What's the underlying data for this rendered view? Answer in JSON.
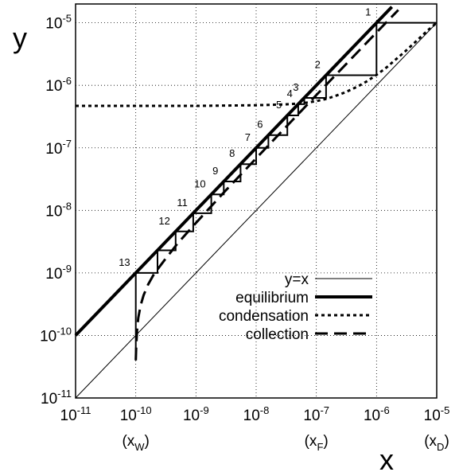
{
  "chart_data": {
    "type": "line",
    "xscale": "log",
    "yscale": "log",
    "xlim": [
      1e-11,
      1e-05
    ],
    "ylim": [
      1e-11,
      2e-05
    ],
    "grid": true,
    "xlabel": "x",
    "ylabel": "y",
    "legend_position": "bottom-right",
    "x_ticks": [
      {
        "exp": "-11"
      },
      {
        "exp": "-10"
      },
      {
        "exp": "-9"
      },
      {
        "exp": "-8"
      },
      {
        "exp": "-7"
      },
      {
        "exp": "-6"
      },
      {
        "exp": "-5"
      }
    ],
    "y_ticks": [
      {
        "exp": "-11"
      },
      {
        "exp": "-10"
      },
      {
        "exp": "-9"
      },
      {
        "exp": "-8"
      },
      {
        "exp": "-7"
      },
      {
        "exp": "-6"
      },
      {
        "exp": "-5"
      }
    ],
    "tick_base": "10",
    "x_markers": [
      {
        "open": "(x",
        "sub": "W",
        "close": ")",
        "x": 1e-10
      },
      {
        "open": "(x",
        "sub": "F",
        "close": ")",
        "x": 1e-07
      },
      {
        "open": "(x",
        "sub": "D",
        "close": ")",
        "x": 1e-05
      }
    ],
    "series": [
      {
        "name": "y=x",
        "style": "thin",
        "x": [
          1e-11,
          1e-05
        ],
        "y": [
          1e-11,
          1e-05
        ]
      },
      {
        "name": "equilibrium",
        "style": "thick",
        "x": [
          1e-11,
          1.8e-06
        ],
        "y": [
          1e-10,
          1.8e-05
        ]
      },
      {
        "name": "condensation",
        "style": "dotted",
        "x": [
          1e-11,
          1e-10,
          1e-09,
          1e-08,
          3e-08,
          5e-08,
          7e-08,
          1e-07,
          1.5e-07,
          2e-07,
          3e-07,
          5e-07,
          7e-07,
          1e-06,
          1.5e-06,
          2e-06,
          3e-06,
          5e-06,
          7e-06,
          1e-05
        ],
        "y": [
          4.7e-07,
          4.7e-07,
          4.7e-07,
          4.8e-07,
          4.95e-07,
          5.1e-07,
          5.3e-07,
          5.6e-07,
          6.1e-07,
          6.7e-07,
          7.7e-07,
          9.7e-07,
          1.17e-06,
          1.47e-06,
          1.97e-06,
          2.5e-06,
          3.5e-06,
          5.5e-06,
          7.5e-06,
          1e-05
        ]
      },
      {
        "name": "collection",
        "style": "dashed",
        "x": [
          1e-10,
          1.02e-10,
          1.05e-10,
          1.1e-10,
          1.2e-10,
          1.35e-10,
          1.6e-10,
          2e-10,
          3e-10,
          5e-10,
          1e-09,
          3e-09,
          1e-08,
          1e-07,
          1e-06,
          2.3e-06
        ],
        "y": [
          4e-11,
          7e-11,
          1.2e-10,
          1.9e-10,
          3e-10,
          4.4e-10,
          6.5e-10,
          9.5e-10,
          1.6e-09,
          3e-09,
          6.3e-09,
          2e-08,
          6.8e-08,
          7e-07,
          7e-06,
          1.6e-05
        ]
      }
    ],
    "step_points": [
      {
        "label": "1",
        "x": 1e-06,
        "y": 1e-05
      },
      {
        "label": "2",
        "x": 1.45e-07,
        "y": 1.45e-06
      },
      {
        "label": "3",
        "x": 6.3e-08,
        "y": 6.3e-07
      },
      {
        "label": "4",
        "x": 5e-08,
        "y": 5e-07
      },
      {
        "label": "5",
        "x": 3.3e-08,
        "y": 3.3e-07
      },
      {
        "label": "6",
        "x": 1.6e-08,
        "y": 1.6e-07
      },
      {
        "label": "7",
        "x": 1e-08,
        "y": 1e-07
      },
      {
        "label": "8",
        "x": 5.5e-09,
        "y": 5.5e-08
      },
      {
        "label": "9",
        "x": 2.9e-09,
        "y": 2.9e-08
      },
      {
        "label": "10",
        "x": 1.8e-09,
        "y": 1.8e-08
      },
      {
        "label": "11",
        "x": 9e-10,
        "y": 9e-09
      },
      {
        "label": "12",
        "x": 4.6e-10,
        "y": 4.6e-09
      },
      {
        "label": "13",
        "x": 1e-10,
        "y": 1e-09
      }
    ],
    "steps_path": [
      [
        1e-10,
        4e-11
      ],
      [
        1e-10,
        1e-09
      ],
      [
        2.3e-10,
        1e-09
      ],
      [
        2.3e-10,
        2.3e-09
      ],
      [
        4.6e-10,
        2.3e-09
      ],
      [
        4.6e-10,
        4.6e-09
      ],
      [
        9e-10,
        4.6e-09
      ],
      [
        9e-10,
        9e-09
      ],
      [
        1.8e-09,
        9e-09
      ],
      [
        1.8e-09,
        1.8e-08
      ],
      [
        2.9e-09,
        1.8e-08
      ],
      [
        2.9e-09,
        2.9e-08
      ],
      [
        5.5e-09,
        2.9e-08
      ],
      [
        5.5e-09,
        5.5e-08
      ],
      [
        1e-08,
        5.5e-08
      ],
      [
        1e-08,
        1e-07
      ],
      [
        1.6e-08,
        1e-07
      ],
      [
        1.6e-08,
        1.6e-07
      ],
      [
        3.3e-08,
        1.6e-07
      ],
      [
        3.3e-08,
        3.3e-07
      ],
      [
        5e-08,
        3.3e-07
      ],
      [
        5e-08,
        5e-07
      ],
      [
        6.3e-08,
        5e-07
      ],
      [
        6.3e-08,
        6.3e-07
      ],
      [
        1.45e-07,
        6.3e-07
      ],
      [
        1.45e-07,
        1.45e-06
      ],
      [
        1e-06,
        1.45e-06
      ],
      [
        1e-06,
        1e-05
      ],
      [
        1e-05,
        1e-05
      ]
    ]
  }
}
